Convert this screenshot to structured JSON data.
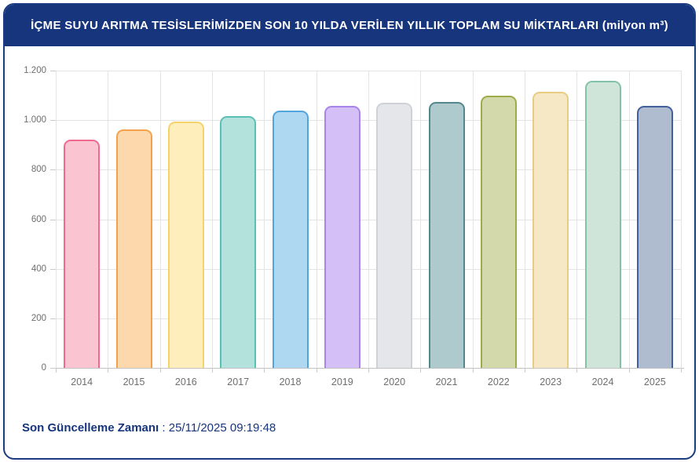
{
  "header": {
    "title": "İÇME SUYU ARITMA TESİSLERİMİZDEN SON 10 YILDA VERİLEN YILLIK TOPLAM SU MİKTARLARI (milyon m³)"
  },
  "footer": {
    "label": "Son Güncelleme Zamanı",
    "separator": " : ",
    "timestamp": "25/11/2025 09:19:48"
  },
  "colors": {
    "header_bg": "#17357c",
    "card_border": "#1b3c80",
    "footer_text": "#17357c",
    "gridline": "#e4e4e4",
    "axis_line": "#c2c2c2",
    "axis_text": "#6e6e6e"
  },
  "chart_data": {
    "type": "bar",
    "title": "İÇME SUYU ARITMA TESİSLERİMİZDEN SON 10 YILDA VERİLEN YILLIK TOPLAM SU MİKTARLARI (milyon m³)",
    "xlabel": "",
    "ylabel": "milyon m³",
    "ylim": [
      0,
      1200
    ],
    "y_tick_step": 200,
    "y_tick_labels": [
      "1.200",
      "1.000",
      "800",
      "600",
      "400",
      "200",
      "0"
    ],
    "grid": true,
    "legend": false,
    "categories": [
      "2014",
      "2015",
      "2016",
      "2017",
      "2018",
      "2019",
      "2020",
      "2021",
      "2022",
      "2023",
      "2024",
      "2025"
    ],
    "values": [
      920,
      961,
      995,
      1017,
      1038,
      1058,
      1070,
      1072,
      1100,
      1115,
      1158,
      1056
    ],
    "bar_styles": [
      {
        "fill": "#fac4d1",
        "border": "#f06a90"
      },
      {
        "fill": "#fcd8ac",
        "border": "#f2a24a"
      },
      {
        "fill": "#fdeebc",
        "border": "#f6d36a"
      },
      {
        "fill": "#b2e2db",
        "border": "#5ac0b4"
      },
      {
        "fill": "#aed7f2",
        "border": "#52a4dd"
      },
      {
        "fill": "#d5bff7",
        "border": "#a984ea"
      },
      {
        "fill": "#e4e6e9",
        "border": "#ced2d8"
      },
      {
        "fill": "#afcacd",
        "border": "#54868e"
      },
      {
        "fill": "#d3d9ab",
        "border": "#9fab4b"
      },
      {
        "fill": "#f6e8c4",
        "border": "#e8cc82"
      },
      {
        "fill": "#cfe5da",
        "border": "#83c2a8"
      },
      {
        "fill": "#afbbcf",
        "border": "#41609c"
      }
    ]
  }
}
